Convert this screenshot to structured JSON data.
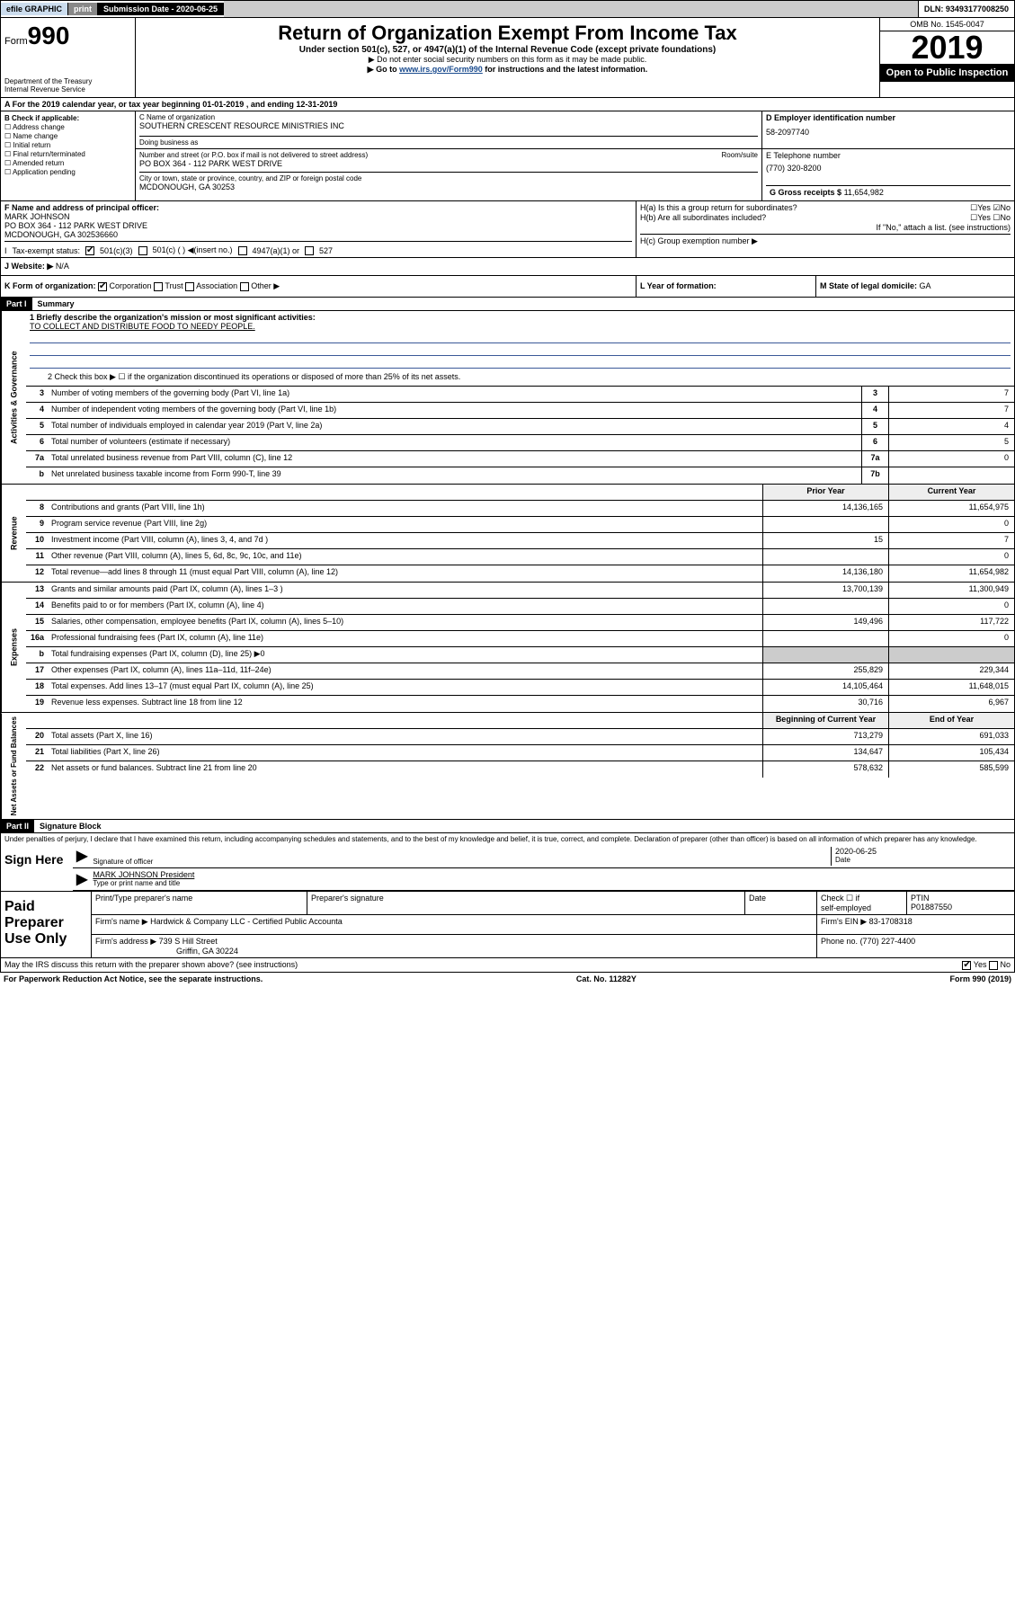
{
  "topbar": {
    "efile": "efile GRAPHIC",
    "print": "print",
    "sub_label": "Submission Date - 2020-06-25",
    "dln": "DLN: 93493177008250"
  },
  "header": {
    "form_prefix": "Form",
    "form_num": "990",
    "dept1": "Department of the Treasury",
    "dept2": "Internal Revenue Service",
    "title": "Return of Organization Exempt From Income Tax",
    "sub1": "Under section 501(c), 527, or 4947(a)(1) of the Internal Revenue Code (except private foundations)",
    "sub2": "▶ Do not enter social security numbers on this form as it may be made public.",
    "sub3_pre": "▶ Go to ",
    "sub3_link": "www.irs.gov/Form990",
    "sub3_post": " for instructions and the latest information.",
    "omb": "OMB No. 1545-0047",
    "year": "2019",
    "inspection": "Open to Public Inspection"
  },
  "period": {
    "label_a": "A For the 2019 calendar year, or tax year beginning ",
    "begin": "01-01-2019",
    "mid": " , and ending ",
    "end": "12-31-2019"
  },
  "block_b": {
    "head": "B Check if applicable:",
    "items": [
      "☐ Address change",
      "☐ Name change",
      "☐ Initial return",
      "☐ Final return/terminated",
      "☐ Amended return",
      "☐ Application pending"
    ]
  },
  "block_c": {
    "name_label": "C Name of organization",
    "name": "SOUTHERN CRESCENT RESOURCE MINISTRIES INC",
    "dba_label": "Doing business as",
    "dba": "",
    "addr_label": "Number and street (or P.O. box if mail is not delivered to street address)",
    "room_label": "Room/suite",
    "addr": "PO BOX 364 - 112 PARK WEST DRIVE",
    "city_label": "City or town, state or province, country, and ZIP or foreign postal code",
    "city": "MCDONOUGH, GA  30253"
  },
  "block_d": {
    "label": "D Employer identification number",
    "val": "58-2097740"
  },
  "block_e": {
    "label": "E Telephone number",
    "val": "(770) 320-8200"
  },
  "block_g": {
    "label": "G Gross receipts $",
    "val": "11,654,982"
  },
  "block_f": {
    "label": "F Name and address of principal officer:",
    "name": "MARK JOHNSON",
    "addr": "PO BOX 364 - 112 PARK WEST DRIVE",
    "city": "MCDONOUGH, GA  302536660"
  },
  "block_h": {
    "ha": "H(a) Is this a group return for subordinates?",
    "ha_yes": "Yes",
    "ha_no": "No",
    "hb": "H(b) Are all subordinates included?",
    "hb_yes": "Yes",
    "hb_no": "No",
    "hb_note": "If \"No,\" attach a list. (see instructions)",
    "hc": "H(c) Group exemption number ▶"
  },
  "tax_status": {
    "label": "Tax-exempt status:",
    "opt1": "501(c)(3)",
    "opt2": "501(c) ( ) ◀(insert no.)",
    "opt3": "4947(a)(1) or",
    "opt4": "527"
  },
  "website": {
    "label_j": "J",
    "label": "Website: ▶",
    "val": "N/A"
  },
  "row_k": {
    "k_label": "K Form of organization:",
    "k_corp": "Corporation",
    "k_trust": "Trust",
    "k_assoc": "Association",
    "k_other": "Other ▶",
    "l_label": "L Year of formation:",
    "l_val": "",
    "m_label": "M State of legal domicile:",
    "m_val": "GA"
  },
  "part1": {
    "tag": "Part I",
    "title": "Summary"
  },
  "summary": {
    "q1_label": "1  Briefly describe the organization's mission or most significant activities:",
    "q1_val": "TO COLLECT AND DISTRIBUTE FOOD TO NEEDY PEOPLE.",
    "q2": "2  Check this box ▶ ☐  if the organization discontinued its operations or disposed of more than 25% of its net assets.",
    "rows_governance": [
      {
        "n": "3",
        "d": "Number of voting members of the governing body (Part VI, line 1a)",
        "box": "3",
        "v": "7"
      },
      {
        "n": "4",
        "d": "Number of independent voting members of the governing body (Part VI, line 1b)",
        "box": "4",
        "v": "7"
      },
      {
        "n": "5",
        "d": "Total number of individuals employed in calendar year 2019 (Part V, line 2a)",
        "box": "5",
        "v": "4"
      },
      {
        "n": "6",
        "d": "Total number of volunteers (estimate if necessary)",
        "box": "6",
        "v": "5"
      },
      {
        "n": "7a",
        "d": "Total unrelated business revenue from Part VIII, column (C), line 12",
        "box": "7a",
        "v": "0"
      },
      {
        "n": "b",
        "d": "Net unrelated business taxable income from Form 990-T, line 39",
        "box": "7b",
        "v": ""
      }
    ],
    "col_prior": "Prior Year",
    "col_current": "Current Year",
    "rows_revenue": [
      {
        "n": "8",
        "d": "Contributions and grants (Part VIII, line 1h)",
        "p": "14,136,165",
        "c": "11,654,975"
      },
      {
        "n": "9",
        "d": "Program service revenue (Part VIII, line 2g)",
        "p": "",
        "c": "0"
      },
      {
        "n": "10",
        "d": "Investment income (Part VIII, column (A), lines 3, 4, and 7d )",
        "p": "15",
        "c": "7"
      },
      {
        "n": "11",
        "d": "Other revenue (Part VIII, column (A), lines 5, 6d, 8c, 9c, 10c, and 11e)",
        "p": "",
        "c": "0"
      },
      {
        "n": "12",
        "d": "Total revenue—add lines 8 through 11 (must equal Part VIII, column (A), line 12)",
        "p": "14,136,180",
        "c": "11,654,982"
      }
    ],
    "rows_expenses": [
      {
        "n": "13",
        "d": "Grants and similar amounts paid (Part IX, column (A), lines 1–3 )",
        "p": "13,700,139",
        "c": "11,300,949"
      },
      {
        "n": "14",
        "d": "Benefits paid to or for members (Part IX, column (A), line 4)",
        "p": "",
        "c": "0"
      },
      {
        "n": "15",
        "d": "Salaries, other compensation, employee benefits (Part IX, column (A), lines 5–10)",
        "p": "149,496",
        "c": "117,722"
      },
      {
        "n": "16a",
        "d": "Professional fundraising fees (Part IX, column (A), line 11e)",
        "p": "",
        "c": "0"
      },
      {
        "n": "b",
        "d": "Total fundraising expenses (Part IX, column (D), line 25) ▶0",
        "p": "GREY",
        "c": "GREY"
      },
      {
        "n": "17",
        "d": "Other expenses (Part IX, column (A), lines 11a–11d, 11f–24e)",
        "p": "255,829",
        "c": "229,344"
      },
      {
        "n": "18",
        "d": "Total expenses. Add lines 13–17 (must equal Part IX, column (A), line 25)",
        "p": "14,105,464",
        "c": "11,648,015"
      },
      {
        "n": "19",
        "d": "Revenue less expenses. Subtract line 18 from line 12",
        "p": "30,716",
        "c": "6,967"
      }
    ],
    "col_begin": "Beginning of Current Year",
    "col_end": "End of Year",
    "rows_assets": [
      {
        "n": "20",
        "d": "Total assets (Part X, line 16)",
        "p": "713,279",
        "c": "691,033"
      },
      {
        "n": "21",
        "d": "Total liabilities (Part X, line 26)",
        "p": "134,647",
        "c": "105,434"
      },
      {
        "n": "22",
        "d": "Net assets or fund balances. Subtract line 21 from line 20",
        "p": "578,632",
        "c": "585,599"
      }
    ]
  },
  "side_labels": {
    "gov": "Activities & Governance",
    "rev": "Revenue",
    "exp": "Expenses",
    "net": "Net Assets or Fund Balances"
  },
  "part2": {
    "tag": "Part II",
    "title": "Signature Block"
  },
  "sig": {
    "perjury": "Under penalties of perjury, I declare that I have examined this return, including accompanying schedules and statements, and to the best of my knowledge and belief, it is true, correct, and complete. Declaration of preparer (other than officer) is based on all information of which preparer has any knowledge.",
    "sign_here": "Sign Here",
    "date": "2020-06-25",
    "sig_officer": "Signature of officer",
    "date_label": "Date",
    "name_title": "MARK JOHNSON President",
    "type_label": "Type or print name and title"
  },
  "prep": {
    "label": "Paid Preparer Use Only",
    "h1": "Print/Type preparer's name",
    "h2": "Preparer's signature",
    "h3": "Date",
    "h4_a": "Check ☐ if",
    "h4_b": "self-employed",
    "h5": "PTIN",
    "ptin": "P01887550",
    "firm_name_label": "Firm's name    ▶",
    "firm_name": "Hardwick & Company LLC - Certified Public Accounta",
    "firm_ein_label": "Firm's EIN ▶",
    "firm_ein": "83-1708318",
    "firm_addr_label": "Firm's address ▶",
    "firm_addr1": "739 S Hill Street",
    "firm_addr2": "Griffin, GA  30224",
    "phone_label": "Phone no.",
    "phone": "(770) 227-4400"
  },
  "footer": {
    "discuss": "May the IRS discuss this return with the preparer shown above? (see instructions)",
    "yes": "Yes",
    "no": "No",
    "pra": "For Paperwork Reduction Act Notice, see the separate instructions.",
    "cat": "Cat. No. 11282Y",
    "form": "Form 990 (2019)"
  }
}
